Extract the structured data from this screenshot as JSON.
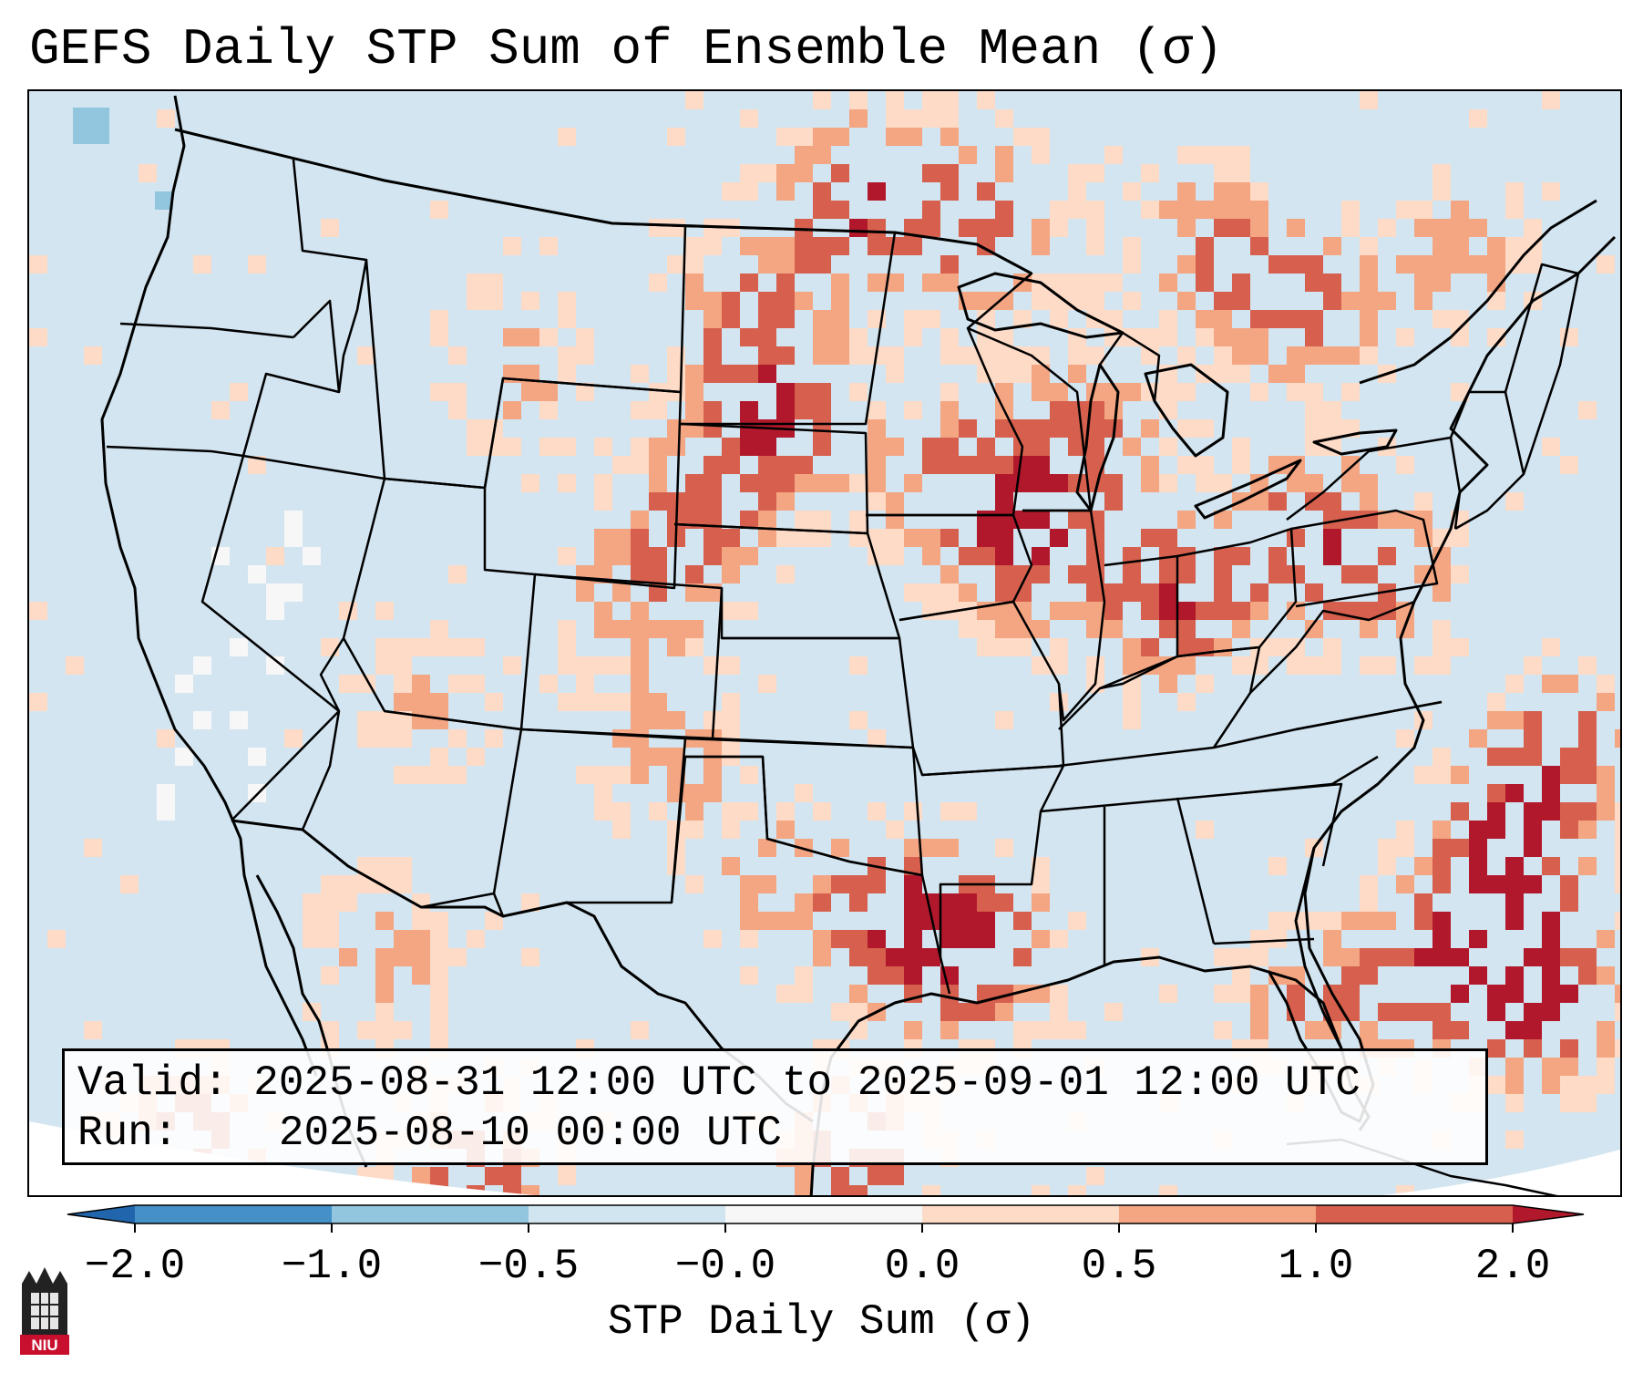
{
  "title": "GEFS Daily STP Sum of Ensemble Mean (σ)",
  "info": {
    "valid_label": "Valid:",
    "valid_text": "2025-08-31 12:00 UTC to 2025-09-01 12:00 UTC",
    "run_label": "Run:",
    "run_text": "2025-08-10 00:00 UTC"
  },
  "colorbar": {
    "label": "STP Daily Sum (σ)",
    "ticks": [
      "−2.0",
      "−1.0",
      "−0.5",
      "−0.0",
      "0.0",
      "0.5",
      "1.0",
      "2.0"
    ],
    "colors": [
      "#4490c7",
      "#92c5de",
      "#d1e5f0",
      "#f7f7f7",
      "#fddbc7",
      "#f4a582",
      "#d6604d",
      "#b2182b"
    ],
    "extend": "both"
  },
  "logo": {
    "text": "NIU",
    "icon": "niu-logo-icon"
  },
  "map": {
    "region": "Continental United States, southern Canada, northern Mexico, Gulf of Mexico, western Atlantic",
    "background_color": "#d2e5f0",
    "hotspots": [
      "Northern Plains",
      "Upper Midwest",
      "Ohio Valley",
      "Mid-Atlantic",
      "Gulf Coast of Texas and Louisiana",
      "Florida",
      "Western Atlantic offshore of the Carolinas"
    ]
  }
}
